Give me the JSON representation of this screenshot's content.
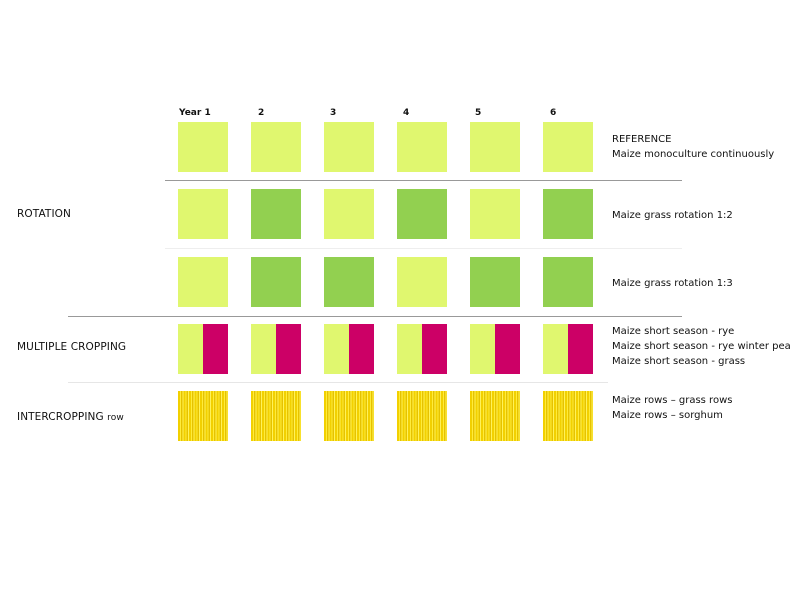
{
  "years": [
    "Year 1",
    "2",
    "3",
    "4",
    "5",
    "6"
  ],
  "sections": {
    "rotation": "ROTATION",
    "multiple_cropping": "MULTIPLE CROPPING",
    "intercropping_main": "INTERCROPPING",
    "intercropping_sub": "row"
  },
  "rows": [
    {
      "pattern": [
        "light",
        "light",
        "light",
        "light",
        "light",
        "light"
      ],
      "labels": [
        "REFERENCE",
        "Maize monoculture continuously"
      ]
    },
    {
      "pattern": [
        "light",
        "dark",
        "light",
        "dark",
        "light",
        "dark"
      ],
      "labels": [
        "Maize grass rotation 1:2"
      ]
    },
    {
      "pattern": [
        "light",
        "dark",
        "dark",
        "light",
        "dark",
        "dark"
      ],
      "labels": [
        "Maize grass rotation 1:3"
      ]
    },
    {
      "pattern": [
        "split",
        "split",
        "split",
        "split",
        "split",
        "split"
      ],
      "labels": [
        "Maize short season - rye",
        "Maize short season - rye winter pea",
        "Maize short season - grass"
      ]
    },
    {
      "pattern": [
        "stripes",
        "stripes",
        "stripes",
        "stripes",
        "stripes",
        "stripes"
      ],
      "labels": [
        "Maize rows – grass rows",
        "Maize rows – sorghum"
      ]
    }
  ],
  "colors": {
    "maize": "#e0f76f",
    "grass": "#92d050",
    "winter_crop": "#cc0066",
    "rows": "#f2d000",
    "divider": "#999999",
    "divider_light": "#dddddd"
  }
}
